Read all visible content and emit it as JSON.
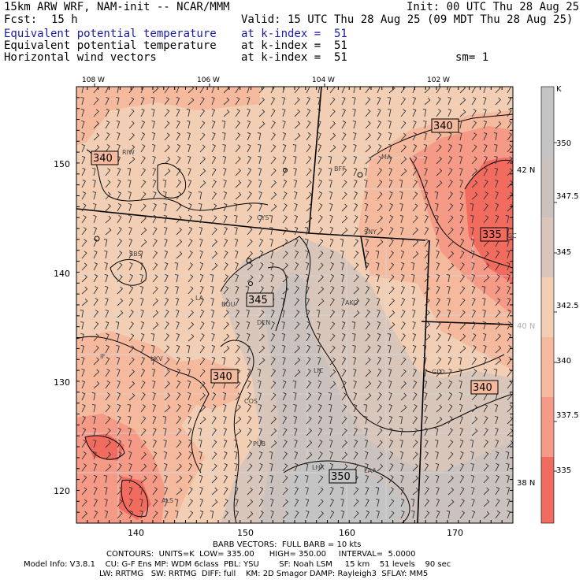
{
  "header": {
    "title": "15km ARW WRF, NAM-init -- NCAR/MMM",
    "init": "Init: 00 UTC Thu 28 Aug 25",
    "fcst_label": "Fcst:",
    "fcst_value": "15 h",
    "valid": "Valid: 15 UTC Thu 28 Aug 25 (09 MDT Thu 28 Aug 25)",
    "line1_field": "Equivalent potential temperature",
    "line1_level": "at k-index =  51",
    "line2_field": "Equivalent potential temperature",
    "line2_level": "at k-index =  51",
    "line3_field": "Horizontal wind vectors",
    "line3_level": "at k-index =  51",
    "sm": "sm= 1"
  },
  "colors": {
    "field_blue": "#1a1aa6",
    "c335": "#f26b5f",
    "c337": "#f59a86",
    "c340": "#f5b99e",
    "c342": "#f2cfb4",
    "c345": "#d9c6bb",
    "c347": "#cbc2bd",
    "c350": "#c4c4c4",
    "gray_label": "#b0b0b0"
  },
  "map": {
    "top_lon_labels": [
      "108 W",
      "106 W",
      "104 W",
      "102 W"
    ],
    "bottom_x_labels": [
      "140",
      "150",
      "160",
      "170"
    ],
    "left_y_labels": [
      "150",
      "140",
      "130",
      "120"
    ],
    "right_lat_labels": [
      "42 N",
      "40 N",
      "38 N"
    ],
    "stations": [
      "RIW",
      "BFF",
      "MA",
      "CYS",
      "SNY",
      "SBS",
      "LA",
      "BOU",
      "DEN",
      "AKO",
      "LXV",
      "LIC",
      "GLD",
      "COS",
      "PUB",
      "LHX",
      "LAA",
      "ALS",
      "IF",
      "GC"
    ],
    "contour_labels": [
      "340",
      "340",
      "335",
      "345",
      "340",
      "340",
      "350"
    ]
  },
  "colorbar": {
    "unit": "K",
    "labels": [
      "350",
      "347.5",
      "345",
      "342.5",
      "340",
      "337.5",
      "335"
    ]
  },
  "footer": {
    "barb": "BARB VECTORS:  FULL BARB = 10 kts",
    "contours": "CONTOURS:  UNITS=K  LOW= 335.00      HIGH= 350.00     INTERVAL=  5.0000",
    "model1": "Model Info: V3.8.1    CU: G-F Ens MP: WDM 6class  PBL: YSU        SF: Noah LSM     15 km    51 levels    90 sec",
    "model2": "LW: RRTMG   SW: RRTMG  DIFF: full    KM: 2D Smagor DAMP: Rayleigh3  SFLAY: MM5"
  }
}
